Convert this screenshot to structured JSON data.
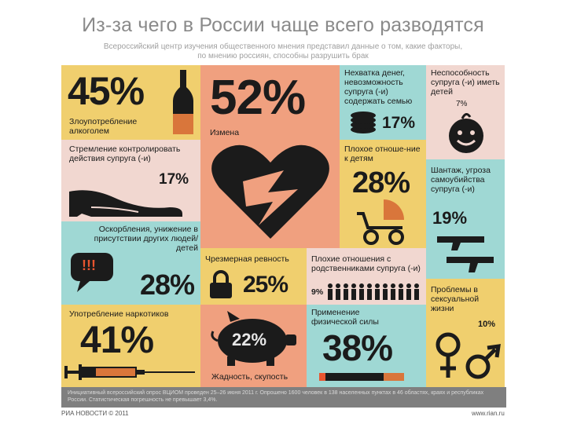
{
  "title": "Из-за чего в России чаще всего разводятся",
  "subtitle": "Всероссийский центр изучения общественного мнения представил данные о том, какие факторы, по мнению россиян, способны разрушить брак",
  "colors": {
    "yellow": "#f0cf6e",
    "pink": "#f1d7d0",
    "salmon": "#f0a07f",
    "teal": "#9fd8d4",
    "dark": "#1b1b1b"
  },
  "items": {
    "alcohol": {
      "value": "45%",
      "label": "Злоупотребление алкоголем",
      "icon": "bottle-icon"
    },
    "cheating": {
      "value": "52%",
      "label": "Измена",
      "icon": "broken-heart-icon"
    },
    "money": {
      "value": "17%",
      "label": "Нехватка денег, невозможность супруга (-и) содержать семью",
      "icon": "coins-icon"
    },
    "childless": {
      "value": "7%",
      "label": "Неспособность супруга (-и) иметь детей",
      "icon": "baby-face-icon"
    },
    "control": {
      "value": "17%",
      "label": "Стремление контролировать действия супруга (-и)",
      "icon": "shoe-icon"
    },
    "children": {
      "value": "28%",
      "label": "Плохое отноше-ние к детям",
      "icon": "stroller-icon"
    },
    "blackmail": {
      "value": "19%",
      "label": "Шантаж, угроза самоубийства супруга (-и)",
      "icon": "pistols-icon"
    },
    "insult": {
      "value": "28%",
      "label": "Оскорбления, унижение в присутствии других людей/детей",
      "bubble": "!!!",
      "icon": "speech-bubble-icon"
    },
    "jealousy": {
      "value": "25%",
      "label": "Чрезмерная ревность",
      "icon": "padlock-icon"
    },
    "relatives": {
      "value": "9%",
      "label": "Плохие отношения с родственниками супруга (-и)",
      "icon": "people-row-icon"
    },
    "drugs": {
      "value": "41%",
      "label": "Употребление наркотиков",
      "icon": "syringe-icon"
    },
    "greed": {
      "value": "22%",
      "label": "Жадность, скупость",
      "icon": "piggy-bank-icon"
    },
    "violence": {
      "value": "38%",
      "label": "Применение физической силы",
      "icon": "cigarette-icon"
    },
    "sex": {
      "value": "10%",
      "label": "Проблемы в сексуальной жизни",
      "icon": "gender-symbols-icon"
    }
  },
  "footer": {
    "text": "Инициативный всероссийский опрос ВЦИОМ проведен 25–26 июня 2011 г. Опрошено 1600 человек в 138 населенных пунктах в 46 областях, краях и республиках России. Статистическая погрешность не превышает 3,4%.",
    "logo": "РИА НОВОСТИ © 2011",
    "site": "www.rian.ru"
  }
}
